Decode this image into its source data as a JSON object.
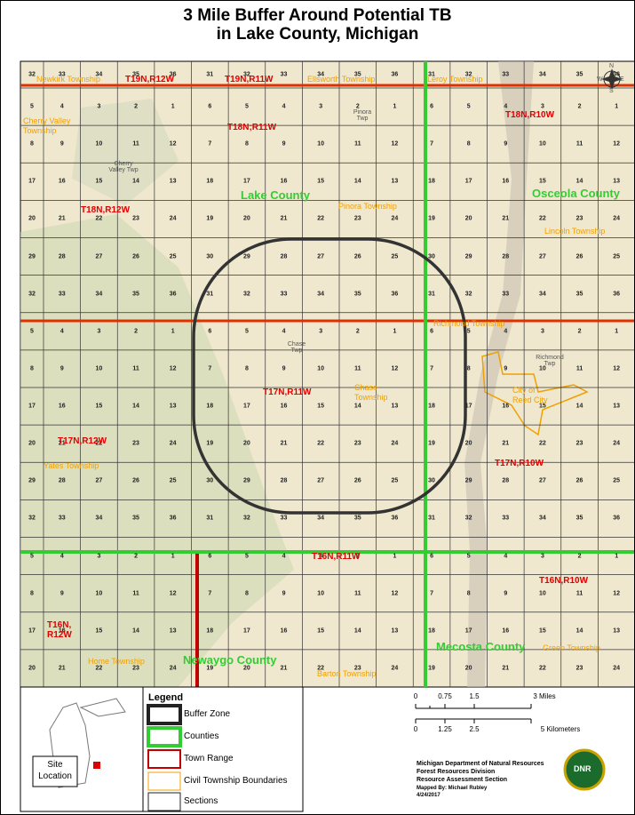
{
  "title": [
    "3 Mile Buffer Around Potential TB",
    "in Lake County, Michigan"
  ],
  "map": {
    "sections": [
      [
        32,
        33,
        34,
        35,
        36,
        31,
        32,
        33,
        34,
        35,
        36,
        31,
        32,
        33,
        34,
        35,
        36
      ],
      [
        5,
        4,
        3,
        2,
        1,
        6,
        5,
        4,
        3,
        2,
        1,
        6,
        5,
        4,
        3,
        2,
        1
      ],
      [
        8,
        9,
        10,
        11,
        12,
        7,
        8,
        9,
        10,
        11,
        12,
        7,
        8,
        9,
        10,
        11,
        12
      ],
      [
        17,
        16,
        15,
        14,
        13,
        18,
        17,
        16,
        15,
        14,
        13,
        18,
        17,
        16,
        15,
        14,
        13
      ],
      [
        20,
        21,
        22,
        23,
        24,
        19,
        20,
        21,
        22,
        23,
        24,
        19,
        20,
        21,
        22,
        23,
        24
      ],
      [
        29,
        28,
        27,
        26,
        25,
        30,
        29,
        28,
        27,
        26,
        25,
        30,
        29,
        28,
        27,
        26,
        25
      ],
      [
        32,
        33,
        34,
        35,
        36,
        31,
        32,
        33,
        34,
        35,
        36,
        31,
        32,
        33,
        34,
        35,
        36
      ],
      [
        5,
        4,
        3,
        2,
        1,
        6,
        5,
        4,
        3,
        2,
        1,
        6,
        5,
        4,
        3,
        2,
        1
      ],
      [
        8,
        9,
        10,
        11,
        12,
        7,
        8,
        9,
        10,
        11,
        12,
        7,
        8,
        9,
        10,
        11,
        12
      ],
      [
        17,
        16,
        15,
        14,
        13,
        18,
        17,
        16,
        15,
        14,
        13,
        18,
        17,
        16,
        15,
        14,
        13
      ],
      [
        20,
        21,
        22,
        23,
        24,
        19,
        20,
        21,
        22,
        23,
        24,
        19,
        20,
        21,
        22,
        23,
        24
      ],
      [
        29,
        28,
        27,
        26,
        25,
        30,
        29,
        28,
        27,
        26,
        25,
        30,
        29,
        28,
        27,
        26,
        25
      ],
      [
        32,
        33,
        34,
        35,
        36,
        31,
        32,
        33,
        34,
        35,
        36,
        31,
        32,
        33,
        34,
        35,
        36
      ],
      [
        5,
        4,
        3,
        2,
        1,
        6,
        5,
        4,
        3,
        2,
        1,
        6,
        5,
        4,
        3,
        2,
        1
      ],
      [
        8,
        9,
        10,
        11,
        12,
        7,
        8,
        9,
        10,
        11,
        12,
        7,
        8,
        9,
        10,
        11,
        12
      ],
      [
        17,
        16,
        15,
        14,
        13,
        18,
        17,
        16,
        15,
        14,
        13,
        18,
        17,
        16,
        15,
        14,
        13
      ],
      [
        20,
        21,
        22,
        23,
        24,
        19,
        20,
        21,
        22,
        23,
        24,
        19,
        20,
        21,
        22,
        23,
        24
      ]
    ],
    "town_ranges": [
      "T19N,R12W",
      "T19N,R11W",
      "T18N,R10W",
      "T18N;R11W",
      "T18N,R12W",
      "T17N,R11W",
      "T17N,R12W",
      "T17N,R10W",
      "T16N,R11W",
      "T16N,R10W",
      "T16N, R12W"
    ],
    "townships": [
      "Newkirk Township",
      "Ellsworth Township",
      "Leroy Township",
      "Cherry Valley Township",
      "Pinora Township",
      "Lincoln Township",
      "Richmond Township",
      "Chase Township",
      "Yates Township",
      "City of Reed City",
      "Home Township",
      "Green Township",
      "Barton Township"
    ],
    "counties": [
      "Lake County",
      "Osceola County",
      "Mecosta County",
      "Newaygo County"
    ],
    "places": [
      "Pinora Twp",
      "Cherry Valley Twp",
      "Chase Twp",
      "Richmond Twp"
    ],
    "compass": [
      "N",
      "E",
      "S",
      "W"
    ]
  },
  "legend": {
    "title": "Legend",
    "items": [
      "Buffer Zone",
      "Counties",
      "Town Range",
      "Civil Township Boundaries",
      "Sections"
    ]
  },
  "inset": {
    "label": "Site Location"
  },
  "scale": {
    "miles": [
      "0",
      "0.75",
      "1.5",
      "3 Miles"
    ],
    "kilometers": [
      "0",
      "1.25",
      "2.5",
      "5 Kilometers"
    ]
  },
  "credits": [
    "Michigan Department of Natural Resources",
    "Forest Resources Division",
    "Resource Assessment Section",
    "Mapped By: Michael Rubley",
    "4/24/2017"
  ],
  "logo": "DNR"
}
